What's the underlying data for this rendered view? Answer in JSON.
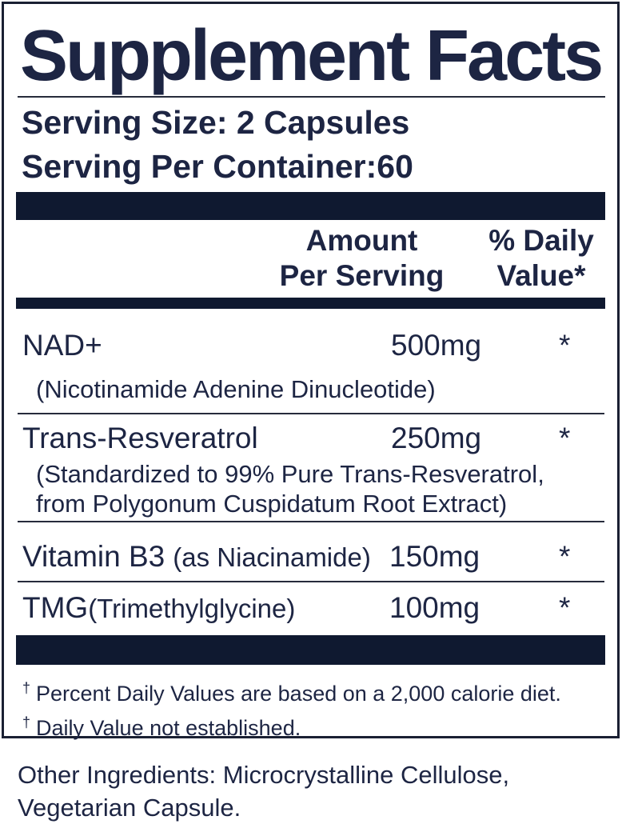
{
  "label": {
    "title": "Supplement Facts",
    "serving_size": "Serving Size: 2 Capsules",
    "servings_per_container": "Serving Per Container:60",
    "header": {
      "amount_line1": "Amount",
      "amount_line2": "Per Serving",
      "dv_line1": "% Daily",
      "dv_line2": "Value*"
    },
    "rows": [
      {
        "name": "NAD+",
        "amount": "500mg",
        "daily_value": "*",
        "desc1": "(Nicotinamide Adenine Dinucleotide)"
      },
      {
        "name": "Trans-Resveratrol",
        "amount": "250mg",
        "daily_value": "*",
        "desc1": "(Standardized to 99% Pure Trans-Resveratrol,",
        "desc2": "from Polygonum Cuspidatum Root Extract)"
      },
      {
        "name": "Vitamin B3",
        "name_suffix": "(as Niacinamide)",
        "amount": "150mg",
        "daily_value": "*"
      },
      {
        "name": "TMG",
        "name_suffix": "(Trimethylglycine)",
        "amount": "100mg",
        "daily_value": "*"
      }
    ],
    "footnotes": [
      {
        "symbol": "†",
        "text": "Percent Daily Values are based on a 2,000 calorie diet."
      },
      {
        "symbol": "†",
        "text": "Daily Value not established."
      }
    ],
    "other_ingredients_line1": "Other Ingredients: Microcrystalline Cellulose,",
    "other_ingredients_line2": "Vegetarian Capsule."
  },
  "colors": {
    "text": "#1d2543",
    "bar": "#0f1930",
    "border": "#1a2033",
    "divider": "#262b3b",
    "background": "#ffffff"
  }
}
